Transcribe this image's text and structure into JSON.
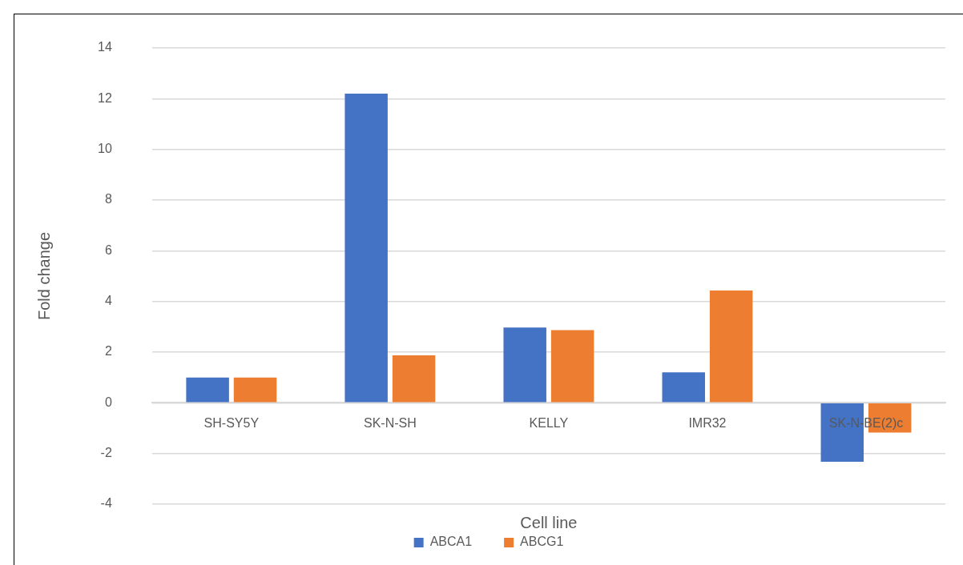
{
  "chart_data": {
    "type": "bar",
    "xlabel": "Cell line",
    "ylabel": "Fold change",
    "categories": [
      "SH-SY5Y",
      "SK-N-SH",
      "KELLY",
      "IMR32",
      "SK-N-BE(2)c"
    ],
    "series": [
      {
        "name": "ABCA1",
        "color": "#4472c4",
        "values": [
          1.0,
          12.2,
          2.97,
          1.2,
          -2.33
        ]
      },
      {
        "name": "ABCG1",
        "color": "#ed7d31",
        "values": [
          1.0,
          1.87,
          2.87,
          4.43,
          -1.17
        ]
      }
    ],
    "ylim": [
      -4,
      14
    ],
    "yticks": [
      -4,
      -2,
      0,
      2,
      4,
      6,
      8,
      10,
      12,
      14
    ],
    "grid": "y",
    "legend": "bottom"
  }
}
